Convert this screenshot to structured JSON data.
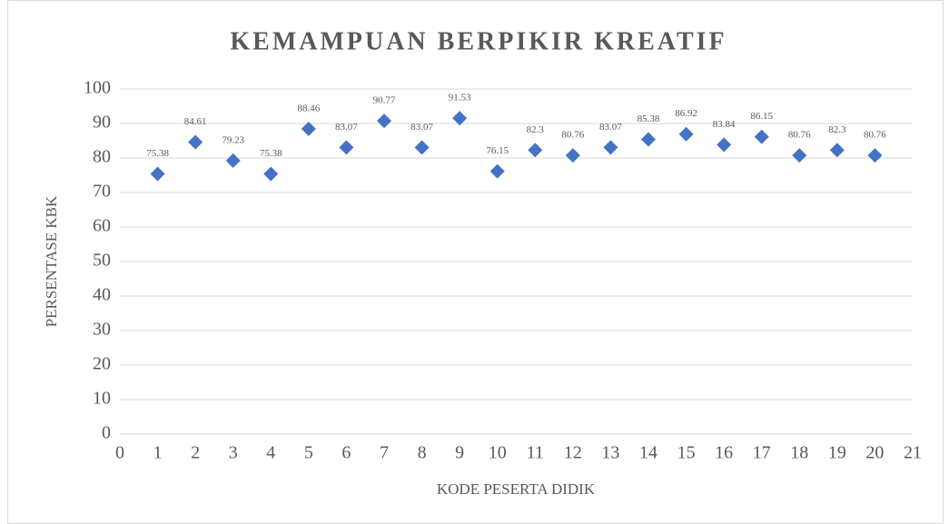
{
  "chart_data": {
    "type": "scatter",
    "title": "KEMAMPUAN BERPIKIR KREATIF",
    "x_label": "KODE PESERTA DIDIK",
    "y_label": "PERSENTASE KBK",
    "x": [
      1,
      2,
      3,
      4,
      5,
      6,
      7,
      8,
      9,
      10,
      11,
      12,
      13,
      14,
      15,
      16,
      17,
      18,
      19,
      20
    ],
    "values": [
      75.38,
      84.61,
      79.23,
      75.38,
      88.46,
      83.07,
      90.77,
      83.07,
      91.53,
      76.15,
      82.3,
      80.76,
      83.07,
      85.38,
      86.92,
      83.84,
      86.15,
      80.76,
      82.3,
      80.76
    ],
    "color": "#4472c4",
    "xlim": [
      0,
      21
    ],
    "xticks": [
      0,
      1,
      2,
      3,
      4,
      5,
      6,
      7,
      8,
      9,
      10,
      11,
      12,
      13,
      14,
      15,
      16,
      17,
      18,
      19,
      20,
      21
    ],
    "ylim": [
      0,
      100
    ],
    "yticks": [
      0,
      10,
      20,
      30,
      40,
      50,
      60,
      70,
      80,
      90,
      100
    ],
    "grid": true
  }
}
